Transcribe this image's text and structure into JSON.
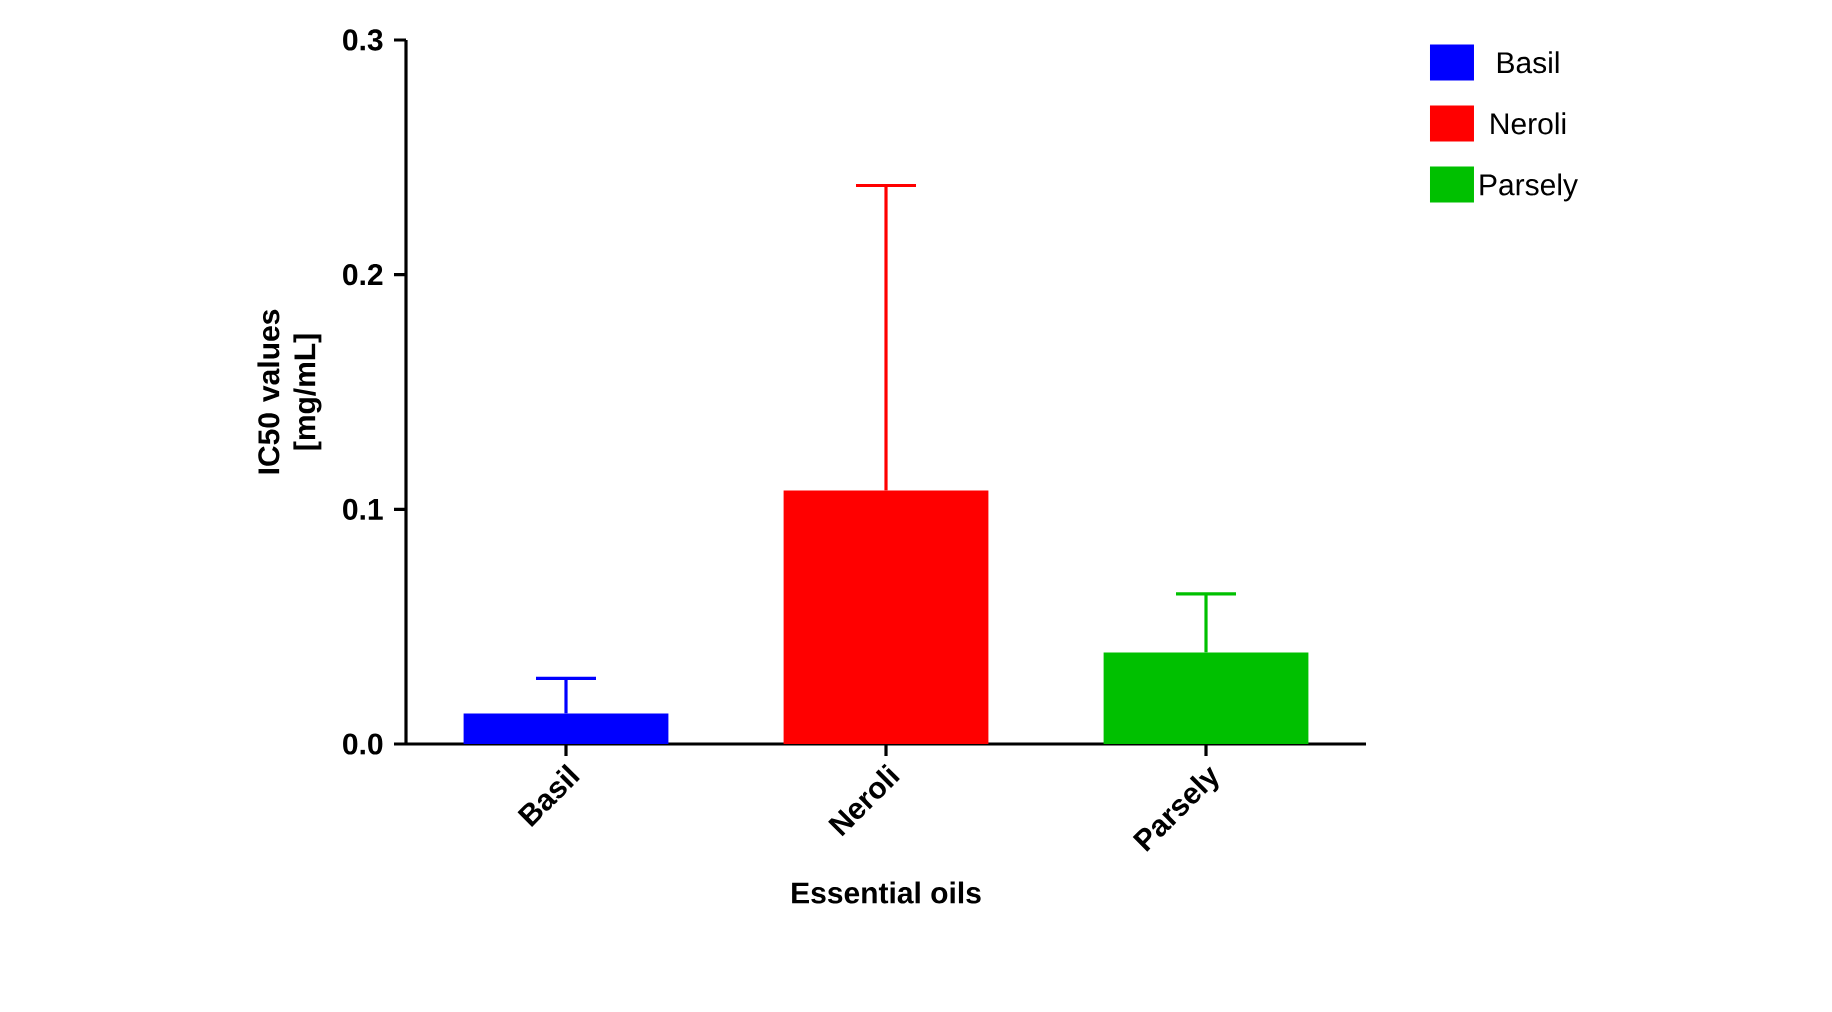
{
  "chart_data": {
    "type": "bar",
    "xlabel": "Essential oils",
    "ylabel": "IC50 values [mg/mL]",
    "categories": [
      "Basil",
      "Neroli",
      "Parsely"
    ],
    "series": [
      {
        "name": "Basil",
        "color": "#0000ff",
        "values": [
          0.013,
          null,
          null
        ],
        "errors": [
          [
            0.013,
            0.028
          ],
          null,
          null
        ]
      },
      {
        "name": "Neroli",
        "color": "#ff0000",
        "values": [
          null,
          0.108,
          null
        ],
        "errors": [
          null,
          [
            0.108,
            0.238
          ],
          null
        ]
      },
      {
        "name": "Parsely",
        "color": "#00c000",
        "values": [
          null,
          null,
          0.039
        ],
        "errors": [
          null,
          null,
          [
            0.039,
            0.064
          ]
        ]
      }
    ],
    "ylim": [
      0,
      0.3
    ],
    "yticks": [
      {
        "value": 0,
        "label": "0.0"
      },
      0.1,
      0.2,
      0.3
    ],
    "legend": "top right",
    "grid": false
  }
}
